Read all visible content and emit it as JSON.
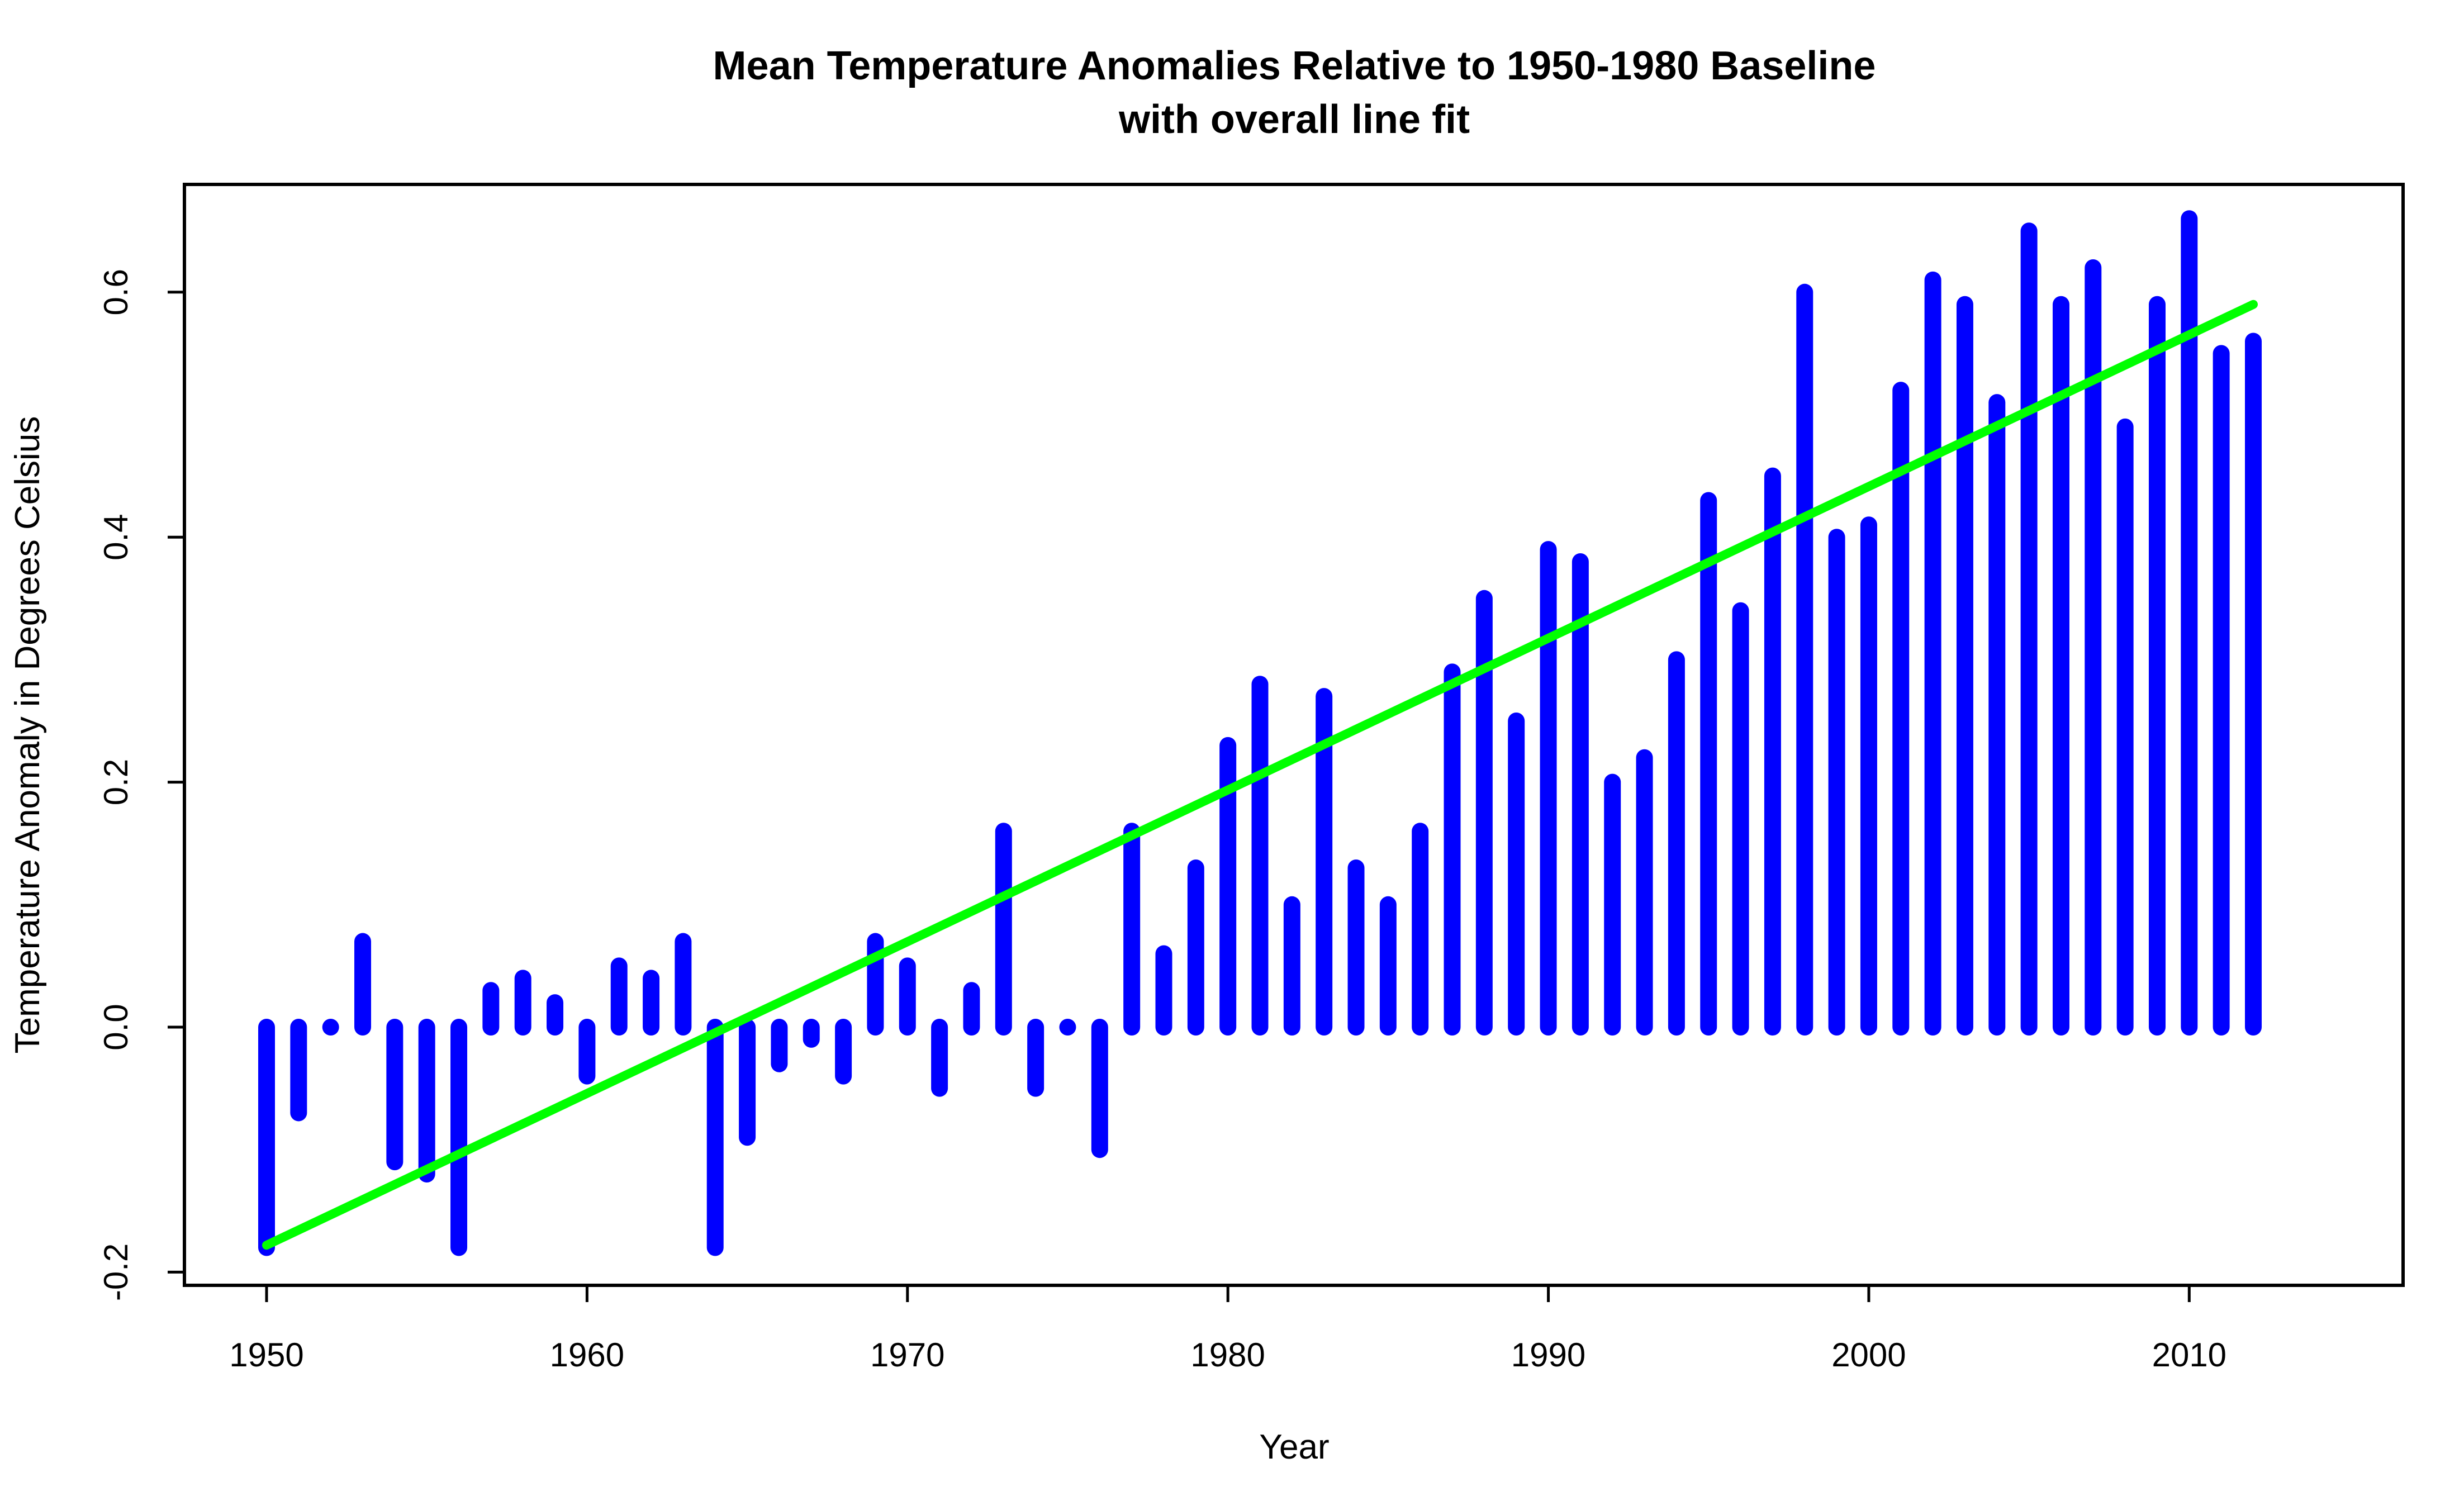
{
  "chart_data": {
    "type": "bar",
    "title": "Mean Temperature Anomalies Relative to 1950-1980 Baseline",
    "subtitle": "with overall line fit",
    "xlabel": "Year",
    "ylabel": "Temperature Anomaly in Degrees Celsius",
    "xlim": [
      1950,
      2012
    ],
    "ylim": [
      -0.2,
      0.66
    ],
    "x_ticks": [
      1950,
      1960,
      1970,
      1980,
      1990,
      2000,
      2010
    ],
    "y_ticks": [
      -0.2,
      0.0,
      0.2,
      0.4,
      0.6
    ],
    "x_tick_labels": [
      "1950",
      "1960",
      "1970",
      "1980",
      "1990",
      "2000",
      "2010"
    ],
    "y_tick_labels": [
      "-0.2",
      "0.0",
      "0.2",
      "0.4",
      "0.6"
    ],
    "grid": false,
    "legend": "none",
    "colors": {
      "bars": "#0000ff",
      "fit_line": "#00ff00",
      "axes": "#000000"
    },
    "x": [
      1950,
      1951,
      1952,
      1953,
      1954,
      1955,
      1956,
      1957,
      1958,
      1959,
      1960,
      1961,
      1962,
      1963,
      1964,
      1965,
      1966,
      1967,
      1968,
      1969,
      1970,
      1971,
      1972,
      1973,
      1974,
      1975,
      1976,
      1977,
      1978,
      1979,
      1980,
      1981,
      1982,
      1983,
      1984,
      1985,
      1986,
      1987,
      1988,
      1989,
      1990,
      1991,
      1992,
      1993,
      1994,
      1995,
      1996,
      1997,
      1998,
      1999,
      2000,
      2001,
      2002,
      2003,
      2004,
      2005,
      2006,
      2007,
      2008,
      2009,
      2010,
      2011,
      2012
    ],
    "series": [
      {
        "values": [
          -0.18,
          -0.07,
          0.0,
          0.07,
          -0.11,
          -0.12,
          -0.18,
          0.03,
          0.04,
          0.02,
          -0.04,
          0.05,
          0.04,
          0.07,
          -0.18,
          -0.09,
          -0.03,
          -0.01,
          -0.04,
          0.07,
          0.05,
          -0.05,
          0.03,
          0.16,
          -0.05,
          0.0,
          -0.1,
          0.16,
          0.06,
          0.13,
          0.23,
          0.28,
          0.1,
          0.27,
          0.13,
          0.1,
          0.16,
          0.29,
          0.35,
          0.25,
          0.39,
          0.38,
          0.2,
          0.22,
          0.3,
          0.43,
          0.34,
          0.45,
          0.6,
          0.4,
          0.41,
          0.52,
          0.61,
          0.59,
          0.51,
          0.65,
          0.59,
          0.62,
          0.49,
          0.59,
          0.66,
          0.55,
          0.56
        ]
      }
    ],
    "fit_line": {
      "x": [
        1950,
        2012
      ],
      "y": [
        -0.178,
        0.59
      ]
    }
  }
}
